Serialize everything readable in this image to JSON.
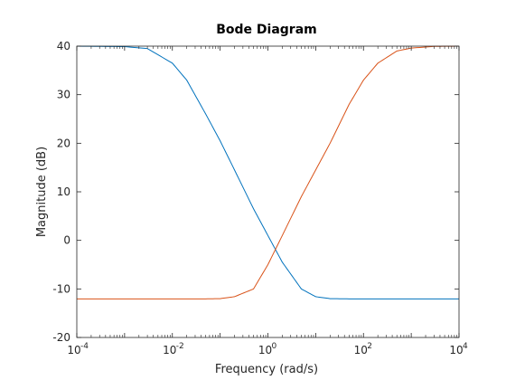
{
  "chart_data": {
    "type": "line",
    "title": "Bode Diagram",
    "xlabel": "Frequency  (rad/s)",
    "ylabel": "Magnitude (dB)",
    "x_scale": "log",
    "xlim": [
      0.0001,
      10000
    ],
    "ylim": [
      -20,
      40
    ],
    "grid": false,
    "legend": "none",
    "x_ticks": [
      {
        "value": 0.0001,
        "base": "10",
        "exp": "-4"
      },
      {
        "value": 0.01,
        "base": "10",
        "exp": "-2"
      },
      {
        "value": 1,
        "base": "10",
        "exp": "0"
      },
      {
        "value": 100,
        "base": "10",
        "exp": "2"
      },
      {
        "value": 10000,
        "base": "10",
        "exp": "4"
      }
    ],
    "y_ticks": [
      {
        "value": 40,
        "label": "40"
      },
      {
        "value": 30,
        "label": "30"
      },
      {
        "value": 20,
        "label": "20"
      },
      {
        "value": 10,
        "label": "10"
      },
      {
        "value": 0,
        "label": "0"
      },
      {
        "value": -10,
        "label": "-10"
      },
      {
        "value": -20,
        "label": "-20"
      }
    ],
    "x": [
      0.0001,
      0.001,
      0.003,
      0.01,
      0.02,
      0.05,
      0.1,
      0.2,
      0.5,
      1,
      2,
      5,
      10,
      20,
      50,
      100,
      200,
      500,
      1000,
      3000,
      10000
    ],
    "series": [
      {
        "color": "#0072bd",
        "values": [
          40.0,
          39.9,
          39.5,
          36.5,
          33.0,
          26.0,
          20.5,
          14.5,
          6.5,
          1.0,
          -4.5,
          -10.0,
          -11.6,
          -12.0,
          -12.05,
          -12.05,
          -12.05,
          -12.05,
          -12.05,
          -12.05,
          -12.05
        ]
      },
      {
        "color": "#d95319",
        "values": [
          -12.05,
          -12.05,
          -12.05,
          -12.05,
          -12.05,
          -12.05,
          -12.0,
          -11.6,
          -10.0,
          -5.0,
          1.0,
          9.0,
          14.5,
          20.0,
          28.0,
          33.0,
          36.5,
          39.0,
          39.6,
          39.95,
          40.0
        ]
      }
    ]
  }
}
